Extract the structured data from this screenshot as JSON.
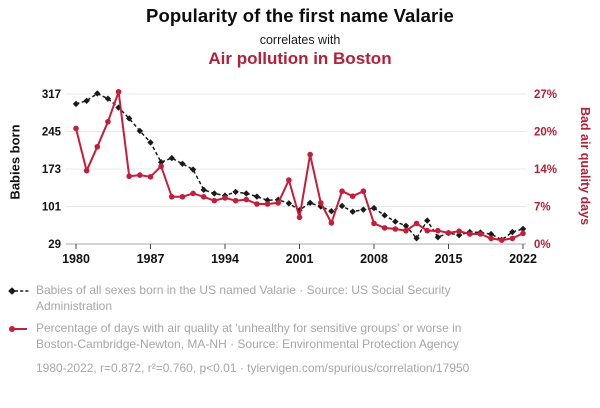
{
  "header": {
    "title": "Popularity of the first name Valarie",
    "subtitle": "correlates with",
    "title2": "Air pollution in Boston"
  },
  "colors": {
    "series_black": "#1a1a1a",
    "series_red": "#c41e3a",
    "accent_red_text": "#b32038",
    "legend_gray": "#a6a6a6",
    "gridline": "#e8e8e8",
    "axis_line": "#aaaaaa"
  },
  "chart_data": {
    "type": "line",
    "title": "Popularity of the first name Valarie correlates with Air pollution in Boston",
    "grid": true,
    "legend_position": "below",
    "x": [
      1980,
      1981,
      1982,
      1983,
      1984,
      1985,
      1986,
      1987,
      1988,
      1989,
      1990,
      1991,
      1992,
      1993,
      1994,
      1995,
      1996,
      1997,
      1998,
      1999,
      2000,
      2001,
      2002,
      2003,
      2004,
      2005,
      2006,
      2007,
      2008,
      2009,
      2010,
      2011,
      2012,
      2013,
      2014,
      2015,
      2016,
      2017,
      2018,
      2019,
      2020,
      2021,
      2022
    ],
    "series": [
      {
        "name": "Babies of all sexes born in the US named Valarie",
        "axis": "left",
        "style": "dashed-diamond",
        "color": "#1a1a1a",
        "values": [
          298,
          304,
          318,
          308,
          291,
          270,
          246,
          224,
          186,
          194,
          183,
          172,
          133,
          126,
          122,
          129,
          126,
          120,
          113,
          114,
          107,
          94,
          108,
          101,
          92,
          102,
          91,
          95,
          98,
          84,
          72,
          64,
          40,
          74,
          42,
          50,
          46,
          52,
          51,
          48,
          37,
          52,
          58
        ]
      },
      {
        "name": "Percentage of days with air quality at 'unhealthy for sensitive groups' or worse in Boston-Cambridge-Newton, MA-NH",
        "axis": "right",
        "style": "solid-circle",
        "color": "#c41e3a",
        "values": [
          20.8,
          13.2,
          17.5,
          22.0,
          27.4,
          12.2,
          12.4,
          12.1,
          14.0,
          8.5,
          8.5,
          9.1,
          8.5,
          7.8,
          8.3,
          7.8,
          8.0,
          7.2,
          7.2,
          7.4,
          11.5,
          4.8,
          16.1,
          7.4,
          3.8,
          9.5,
          8.6,
          9.5,
          3.7,
          2.9,
          2.7,
          2.4,
          3.7,
          2.4,
          2.4,
          2.0,
          2.3,
          1.8,
          1.8,
          1.0,
          0.7,
          1.0,
          1.9
        ]
      }
    ],
    "left_axis": {
      "label": "Babies born",
      "ticks": [
        317,
        245,
        173,
        101,
        29
      ],
      "range": [
        29,
        317
      ]
    },
    "right_axis": {
      "label": "Bad air quality days",
      "tick_labels": [
        "27%",
        "20%",
        "14%",
        "7%",
        "0%"
      ],
      "tick_values": [
        27,
        20.25,
        13.5,
        6.75,
        0
      ],
      "range": [
        0,
        27
      ]
    },
    "x_axis": {
      "ticks": [
        1980,
        1987,
        1994,
        2001,
        2008,
        2015,
        2022
      ],
      "range": [
        1980,
        2022
      ]
    }
  },
  "legend": {
    "items": [
      {
        "marker": "black-dashed-diamond",
        "text": "Babies of all sexes born in the US named Valarie · Source: US Social Security Administration"
      },
      {
        "marker": "red-solid-circle",
        "text": "Percentage of days with air quality at 'unhealthy for sensitive groups' or worse in Boston-Cambridge-Newton, MA-NH · Source: Environmental Protection Agency"
      }
    ]
  },
  "footer": {
    "stats": "1980-2022, r=0.872, r²=0.760, p<0.01",
    "separator": " · ",
    "link": "tylervigen.com/spurious/correlation/17950"
  }
}
